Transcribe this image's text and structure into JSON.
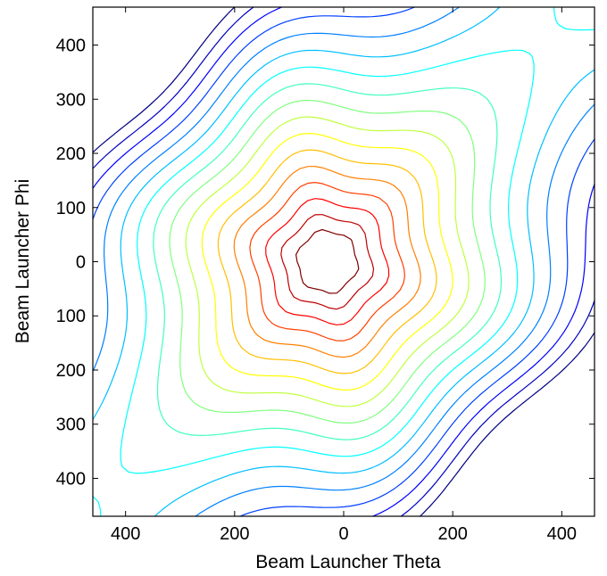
{
  "chart_data": {
    "type": "contour",
    "title": "",
    "xlabel": "Beam Launcher Theta",
    "ylabel": "Beam Launcher Phi",
    "xlim": [
      -460,
      460
    ],
    "ylim": [
      -470,
      470
    ],
    "x_ticks": [
      -400,
      -200,
      0,
      200,
      400
    ],
    "x_tick_labels": [
      "400",
      "200",
      "0",
      "200",
      "400"
    ],
    "y_ticks": [
      400,
      300,
      200,
      100,
      0,
      -100,
      -200,
      -300,
      -400
    ],
    "y_tick_labels": [
      "400",
      "300",
      "200",
      "100",
      "0",
      "100",
      "200",
      "300",
      "400"
    ],
    "grid": false,
    "legend": "none",
    "colormap": "jet",
    "field": {
      "center": [
        -30,
        0
      ],
      "x_scale": 330,
      "y_scale": 340,
      "level_count": 17,
      "level_range": [
        0.2,
        1.55
      ]
    }
  }
}
